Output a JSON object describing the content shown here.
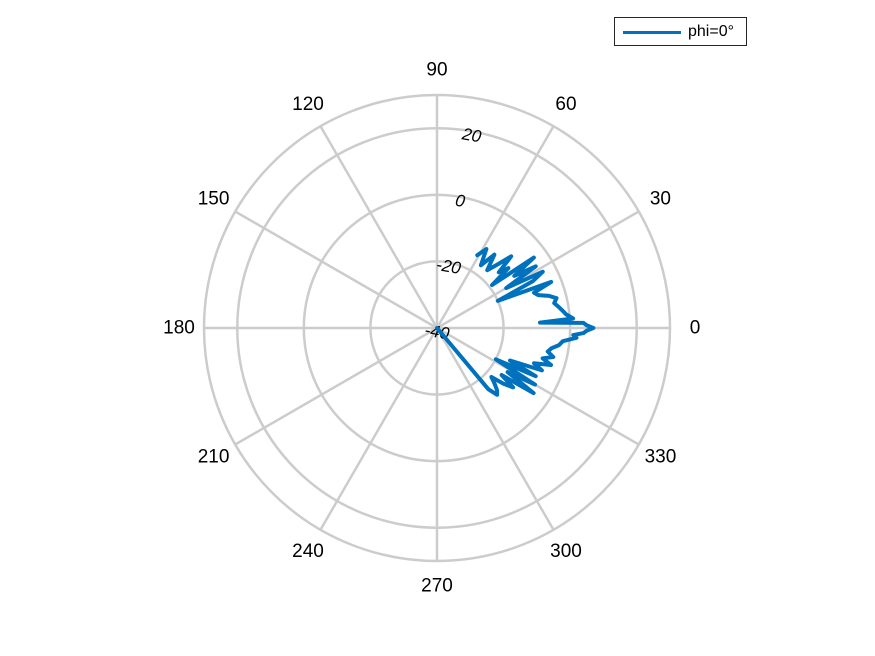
{
  "chart_data": {
    "type": "polar-line",
    "theta_ticks": [
      0,
      30,
      60,
      90,
      120,
      150,
      180,
      210,
      240,
      270,
      300,
      330
    ],
    "theta_tick_labels": [
      "0",
      "30",
      "60",
      "90",
      "120",
      "150",
      "180",
      "210",
      "240",
      "270",
      "300",
      "330"
    ],
    "rlim": [
      -40,
      30
    ],
    "r_ticks": [
      -40,
      -20,
      0,
      20
    ],
    "r_tick_labels": [
      "-40",
      "-20",
      "0",
      "20"
    ],
    "grid": true,
    "legend_placement": "top-right",
    "series": [
      {
        "name": "phi=0°",
        "color": "#0072BD",
        "points": [
          [
            61,
            -15
          ],
          [
            58,
            -12
          ],
          [
            55,
            -17
          ],
          [
            52,
            -12
          ],
          [
            49,
            -17
          ],
          [
            46,
            -13
          ],
          [
            44,
            -9
          ],
          [
            42,
            -15
          ],
          [
            40,
            -12
          ],
          [
            38,
            -19
          ],
          [
            36,
            -4
          ],
          [
            34,
            -12
          ],
          [
            32,
            -5
          ],
          [
            30,
            -16
          ],
          [
            28,
            -4
          ],
          [
            26,
            -8
          ],
          [
            24,
            -20
          ],
          [
            22,
            -3
          ],
          [
            20,
            -9
          ],
          [
            18,
            -8
          ],
          [
            16,
            -5
          ],
          [
            14,
            -3
          ],
          [
            12,
            -4
          ],
          [
            10,
            -3
          ],
          [
            8,
            -2
          ],
          [
            6,
            -1
          ],
          [
            4,
            1
          ],
          [
            3,
            -9
          ],
          [
            2,
            4
          ],
          [
            1,
            5
          ],
          [
            0,
            7
          ],
          [
            -1,
            5
          ],
          [
            -2,
            4
          ],
          [
            -3,
            1
          ],
          [
            -4,
            2
          ],
          [
            -6,
            -2
          ],
          [
            -8,
            -3
          ],
          [
            -10,
            -5
          ],
          [
            -12,
            -6
          ],
          [
            -14,
            -4
          ],
          [
            -16,
            -7
          ],
          [
            -18,
            -4
          ],
          [
            -20,
            -9
          ],
          [
            -22,
            -6
          ],
          [
            -24,
            -16
          ],
          [
            -26,
            -7
          ],
          [
            -28,
            -20
          ],
          [
            -30,
            -6
          ],
          [
            -32,
            -15
          ],
          [
            -34,
            -5
          ],
          [
            -36,
            -16
          ],
          [
            -38,
            -11
          ],
          [
            -40,
            -14
          ],
          [
            -42,
            -18
          ],
          [
            -44,
            -16
          ],
          [
            -46,
            -14
          ],
          [
            -48,
            -13
          ],
          [
            -50,
            -16
          ],
          [
            -28,
            -40
          ]
        ]
      }
    ]
  }
}
